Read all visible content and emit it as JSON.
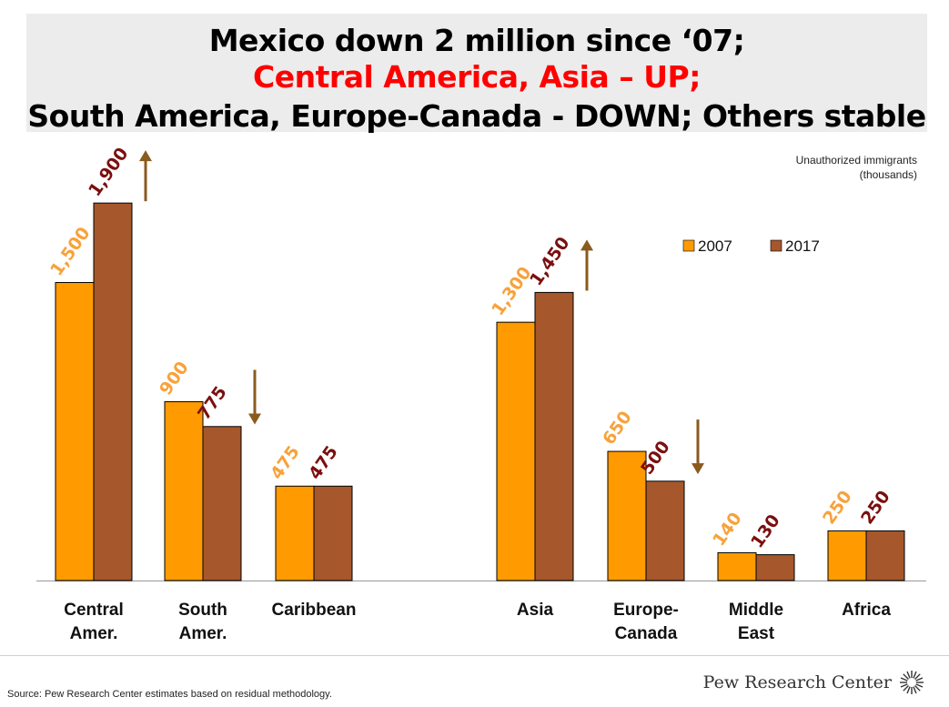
{
  "title": {
    "line1": "Mexico down 2 million since ‘07;",
    "line2": "Central America, Asia – UP;",
    "line3": "South America, Europe-Canada - DOWN; Others stable"
  },
  "colors": {
    "series_2007": "#ff9a00",
    "series_2017": "#a6572b",
    "label_2007": "#f7a23a",
    "label_2017": "#7b0f0f",
    "arrow": "#8a5a1e",
    "title_highlight": "#ff0000"
  },
  "chart_data": {
    "type": "bar",
    "unit_note_line1": "Unauthorized immigrants",
    "unit_note_line2": "(thousands)",
    "categories": [
      {
        "line1": "Central",
        "line2": "Amer."
      },
      {
        "line1": "South",
        "line2": "Amer."
      },
      {
        "line1": "Caribbean",
        "line2": ""
      },
      {
        "line1": "Asia",
        "line2": ""
      },
      {
        "line1": "Europe-",
        "line2": "Canada"
      },
      {
        "line1": "Middle",
        "line2": "East"
      },
      {
        "line1": "Africa",
        "line2": ""
      }
    ],
    "series": [
      {
        "name": "2007",
        "values": [
          1500,
          900,
          475,
          1300,
          650,
          140,
          250
        ],
        "labels": [
          "1,500",
          "900",
          "475",
          "1,300",
          "650",
          "140",
          "250"
        ]
      },
      {
        "name": "2017",
        "values": [
          1900,
          775,
          475,
          1450,
          500,
          130,
          250
        ],
        "labels": [
          "1,900",
          "775",
          "475",
          "1,450",
          "500",
          "130",
          "250"
        ]
      }
    ],
    "trend_arrows": [
      "up",
      "down",
      "none",
      "up",
      "down",
      "none",
      "none"
    ],
    "ylim": [
      0,
      2000
    ],
    "legend_position": "top-right",
    "grid": false
  },
  "footer": {
    "source": "Source: Pew Research Center estimates based on residual methodology.",
    "brand": "Pew Research Center"
  }
}
